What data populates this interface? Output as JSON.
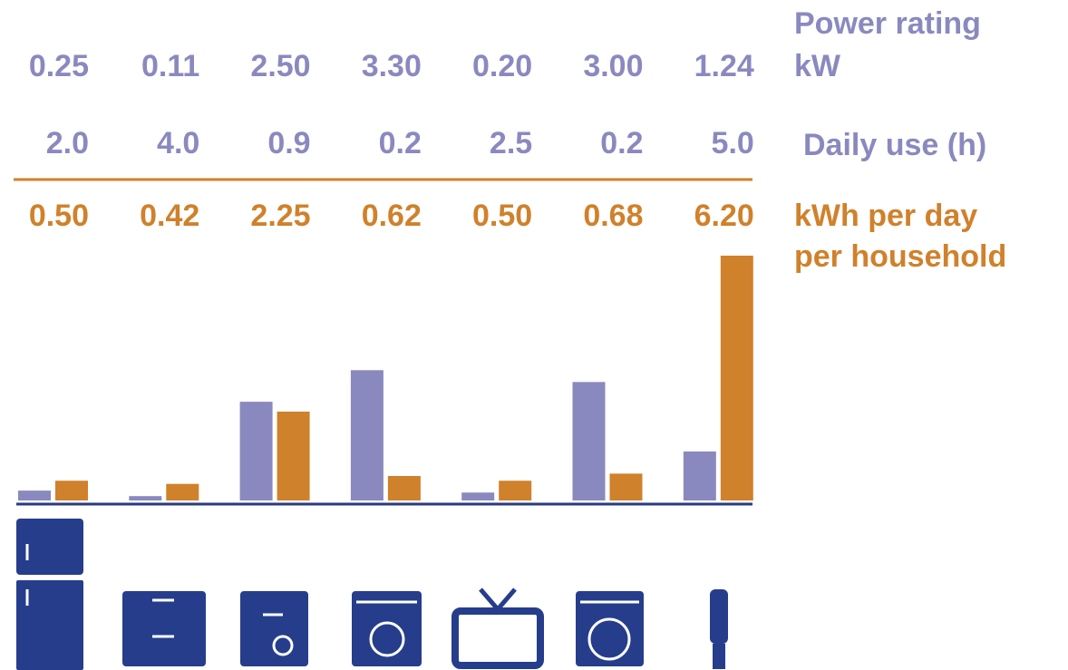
{
  "chart_data": {
    "type": "bar",
    "series": [
      {
        "name_lines": [
          "Power rating",
          "kW"
        ],
        "color": "#8a89bf",
        "values": [
          0.25,
          0.11,
          2.5,
          3.3,
          0.2,
          3.0,
          1.24
        ],
        "value_labels": [
          "0.25",
          "0.11",
          "2.50",
          "3.30",
          "0.20",
          "3.00",
          "1.24"
        ]
      },
      {
        "name_lines": [
          "kWh per day",
          "per household"
        ],
        "color": "#d0812b",
        "values": [
          0.5,
          0.42,
          2.25,
          0.62,
          0.5,
          0.68,
          6.2
        ],
        "value_labels": [
          "0.50",
          "0.42",
          "2.25",
          "0.62",
          "0.50",
          "0.68",
          "6.20"
        ]
      }
    ],
    "daily_use": {
      "name": "Daily use (h)",
      "color": "#8a89bf",
      "values": [
        2.0,
        4.0,
        0.9,
        0.2,
        2.5,
        0.2,
        5.0
      ],
      "value_labels": [
        "2.0",
        "4.0",
        "0.9",
        "0.2",
        "2.5",
        "0.2",
        "5.0"
      ]
    }
  }
}
